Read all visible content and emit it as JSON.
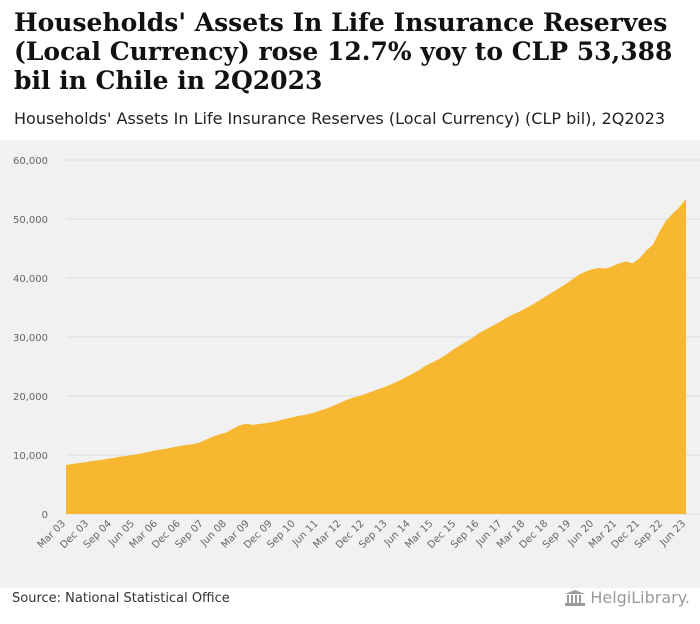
{
  "header": {
    "title": "Households' Assets In Life Insurance Reserves (Local Currency) rose 12.7% yoy to CLP 53,388 bil in Chile in 2Q2023",
    "subtitle": "Households' Assets In Life Insurance Reserves (Local Currency) (CLP bil), 2Q2023"
  },
  "footer": {
    "source": "Source: National Statistical Office",
    "logo_text": "HelgiLibrary."
  },
  "colors": {
    "fill": "#f7b731",
    "grid": "#dddddd",
    "background": "#f1f1f1",
    "tick_text": "#666666"
  },
  "chart_data": {
    "type": "area",
    "title": "Households' Assets In Life Insurance Reserves (Local Currency) (CLP bil), 2Q2023",
    "xlabel": "",
    "ylabel": "",
    "ylim": [
      0,
      60000
    ],
    "y_ticks": [
      0,
      10000,
      20000,
      30000,
      40000,
      50000,
      60000
    ],
    "y_tick_labels": [
      "0",
      "10,000",
      "20,000",
      "30,000",
      "40,000",
      "50,000",
      "60,000"
    ],
    "x_tick_labels": [
      "Mar 03",
      "Dec 03",
      "Sep 04",
      "Jun 05",
      "Mar 06",
      "Dec 06",
      "Sep 07",
      "Jun 08",
      "Mar 09",
      "Dec 09",
      "Sep 10",
      "Jun 11",
      "Mar 12",
      "Dec 12",
      "Sep 13",
      "Jun 14",
      "Mar 15",
      "Dec 15",
      "Sep 16",
      "Jun 17",
      "Mar 18",
      "Dec 18",
      "Sep 19",
      "Jun 20",
      "Mar 21",
      "Dec 21",
      "Sep 22",
      "Jun 23"
    ],
    "grid": true,
    "series": [
      {
        "name": "Households' Assets In Life Insurance Reserves (Local Currency)",
        "values": [
          8300,
          8500,
          8650,
          8800,
          9000,
          9100,
          9300,
          9500,
          9700,
          9850,
          10000,
          10200,
          10450,
          10700,
          10900,
          11050,
          11300,
          11500,
          11700,
          11850,
          12100,
          12600,
          13100,
          13500,
          13800,
          14400,
          15000,
          15300,
          15100,
          15250,
          15400,
          15600,
          15850,
          16150,
          16400,
          16650,
          16850,
          17100,
          17500,
          17850,
          18300,
          18800,
          19300,
          19700,
          20000,
          20400,
          20800,
          21200,
          21600,
          22100,
          22600,
          23200,
          23800,
          24400,
          25200,
          25700,
          26300,
          27000,
          27800,
          28500,
          29200,
          29900,
          30700,
          31300,
          31900,
          32500,
          33200,
          33800,
          34300,
          34900,
          35500,
          36200,
          36900,
          37600,
          38300,
          39000,
          39800,
          40600,
          41100,
          41500,
          41700,
          41600,
          42000,
          42500,
          42800,
          42500,
          43300,
          44600,
          45600,
          47800,
          49700,
          50900,
          52000,
          53388
        ]
      }
    ]
  }
}
